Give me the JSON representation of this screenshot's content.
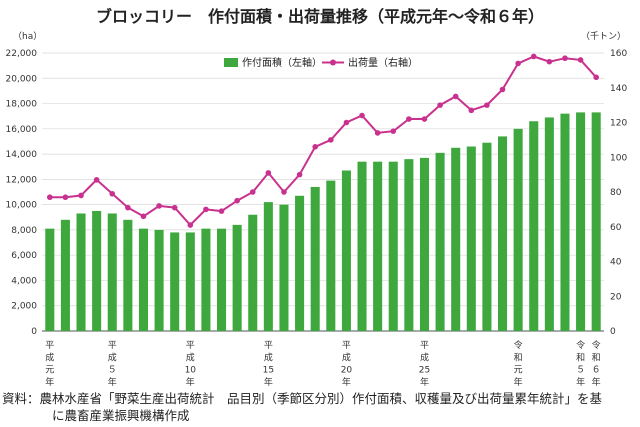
{
  "chart_data": {
    "type": "bar+line",
    "title": "ブロッコリー　作付面積・出荷量推移（平成元年〜令和６年）",
    "left_unit": "（ha）",
    "right_unit": "（千トン）",
    "left_ylim": [
      0,
      22000
    ],
    "left_ticks": [
      "0",
      "2,000",
      "4,000",
      "6,000",
      "8,000",
      "10,000",
      "12,000",
      "14,000",
      "16,000",
      "18,000",
      "20,000",
      "22,000"
    ],
    "right_ylim": [
      0,
      160
    ],
    "right_ticks": [
      "0",
      "20",
      "40",
      "60",
      "80",
      "100",
      "120",
      "140",
      "160"
    ],
    "categories": [
      "H1",
      "H2",
      "H3",
      "H4",
      "H5",
      "H6",
      "H7",
      "H8",
      "H9",
      "H10",
      "H11",
      "H12",
      "H13",
      "H14",
      "H15",
      "H16",
      "H17",
      "H18",
      "H19",
      "H20",
      "H21",
      "H22",
      "H23",
      "H24",
      "H25",
      "H26",
      "H27",
      "H28",
      "H29",
      "H30",
      "R1",
      "R2",
      "R3",
      "R4",
      "R5",
      "R6"
    ],
    "x_labels": [
      {
        "index": 0,
        "text": "平成元年"
      },
      {
        "index": 4,
        "text": "平成５年"
      },
      {
        "index": 9,
        "text": "平成10年"
      },
      {
        "index": 14,
        "text": "平成15年"
      },
      {
        "index": 19,
        "text": "平成20年"
      },
      {
        "index": 24,
        "text": "平成25年"
      },
      {
        "index": 30,
        "text": "令和元年"
      },
      {
        "index": 34,
        "text": "令和５年"
      },
      {
        "index": 35,
        "text": "令和６年"
      }
    ],
    "series": [
      {
        "name": "作付面積（左軸）",
        "type": "bar",
        "axis": "left",
        "color": "#3ea83e",
        "values": [
          8100,
          8800,
          9300,
          9500,
          9300,
          8800,
          8100,
          8000,
          7800,
          7800,
          8100,
          8100,
          8400,
          9200,
          10200,
          10000,
          10700,
          11400,
          11900,
          12700,
          13400,
          13400,
          13400,
          13600,
          13700,
          14100,
          14500,
          14600,
          14900,
          15400,
          16000,
          16600,
          16900,
          17200,
          17300,
          17300
        ]
      },
      {
        "name": "出荷量（右軸）",
        "type": "line",
        "axis": "right",
        "color": "#c9318f",
        "values": [
          77,
          77,
          78,
          87,
          79,
          71,
          66,
          72,
          71,
          61,
          70,
          69,
          75,
          80,
          91,
          80,
          90,
          106,
          110,
          120,
          124,
          114,
          115,
          122,
          122,
          130,
          135,
          127,
          130,
          139,
          154,
          158,
          155,
          157,
          156,
          146
        ]
      }
    ],
    "legend_position": "top-right"
  },
  "source": {
    "line1": "資料：農林水産省「野菜生産出荷統計　品目別（季節区分別）作付面積、収穫量及び出荷量累年統計」を基",
    "line2": "に農畜産業振興機構作成"
  }
}
